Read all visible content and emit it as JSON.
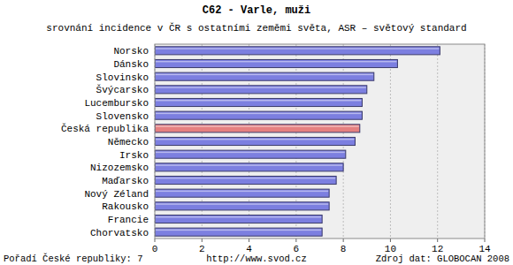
{
  "chart_data": {
    "type": "bar",
    "orientation": "horizontal",
    "title": "C62 - Varle, muži",
    "subtitle": "srovnání incidence v ČR s ostatními zeměmi světa, ASR – světový standard",
    "categories": [
      "Norsko",
      "Dánsko",
      "Slovinsko",
      "Švýcarsko",
      "Lucembursko",
      "Slovensko",
      "Česká republika",
      "Německo",
      "Irsko",
      "Nizozemsko",
      "Maďarsko",
      "Nový Zéland",
      "Rakousko",
      "Francie",
      "Chorvatsko"
    ],
    "values": [
      12.1,
      10.3,
      9.3,
      9.0,
      8.8,
      8.8,
      8.7,
      8.5,
      8.1,
      8.0,
      7.7,
      7.4,
      7.4,
      7.1,
      7.1
    ],
    "colors": [
      "#7c7fe0",
      "#7c7fe0",
      "#7c7fe0",
      "#7c7fe0",
      "#7c7fe0",
      "#7c7fe0",
      "#e58080",
      "#7c7fe0",
      "#7c7fe0",
      "#7c7fe0",
      "#7c7fe0",
      "#7c7fe0",
      "#7c7fe0",
      "#7c7fe0",
      "#7c7fe0"
    ],
    "xlim": [
      0,
      14
    ],
    "xticks": [
      0,
      2,
      4,
      6,
      8,
      10,
      12,
      14
    ],
    "grid": true,
    "annotations": [
      "Pořadí České republiky: 7",
      "http://www.svod.cz",
      "Zdroj dat: GLOBOCAN 2008"
    ]
  }
}
